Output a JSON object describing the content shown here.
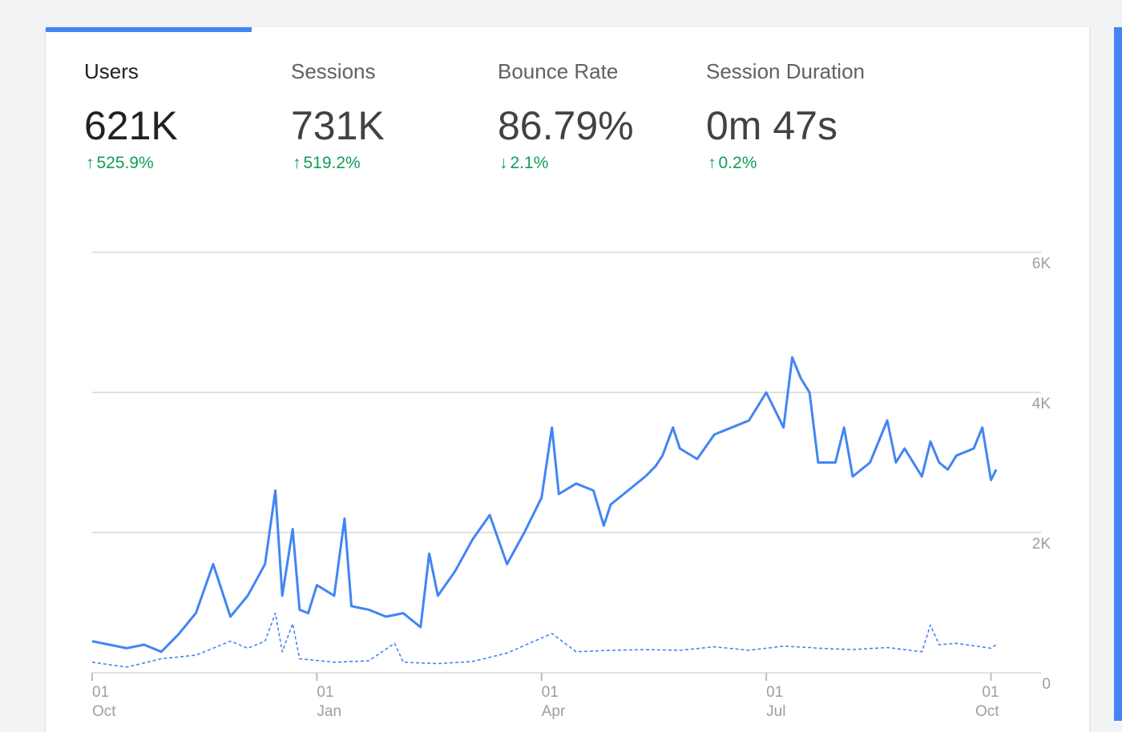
{
  "metrics": [
    {
      "label": "Users",
      "value": "621K",
      "direction": "up",
      "arrow": "↑",
      "change": "525.9%"
    },
    {
      "label": "Sessions",
      "value": "731K",
      "direction": "up",
      "arrow": "↑",
      "change": "519.2%"
    },
    {
      "label": "Bounce Rate",
      "value": "86.79%",
      "direction": "down",
      "arrow": "↓",
      "change": "2.1%"
    },
    {
      "label": "Session Duration",
      "value": "0m 47s",
      "direction": "up",
      "arrow": "↑",
      "change": "0.2%"
    }
  ],
  "colors": {
    "accent": "#4285f4",
    "positive_change": "#0f9d58",
    "grid": "#e0e0e0"
  },
  "chart_data": {
    "type": "line",
    "y_ticks": [
      "6K",
      "4K",
      "2K",
      "0"
    ],
    "ylim": [
      0,
      6000
    ],
    "x_ticks": [
      {
        "day": "01",
        "month": "Oct"
      },
      {
        "day": "01",
        "month": "Jan"
      },
      {
        "day": "01",
        "month": "Apr"
      },
      {
        "day": "01",
        "month": "Jul"
      },
      {
        "day": "01",
        "month": "Oct"
      }
    ],
    "grid": true,
    "x_range_weeks": [
      0,
      52.3
    ],
    "series": [
      {
        "style": "solid",
        "x": [
          0,
          1,
          2,
          3,
          4,
          5,
          6,
          7,
          8,
          9,
          10,
          10.6,
          11,
          11.6,
          12,
          12.5,
          13,
          14,
          14.6,
          15,
          16,
          17,
          18,
          18.5,
          19,
          19.5,
          20,
          21,
          22,
          23,
          24,
          25,
          26,
          26.6,
          27,
          28,
          29,
          29.6,
          30,
          31,
          32,
          32.6,
          33,
          33.6,
          34,
          35,
          36,
          37,
          38,
          39,
          40,
          40.5,
          41,
          41.5,
          42,
          43,
          43.5,
          44,
          45,
          46,
          46.5,
          47,
          48,
          48.5,
          49,
          49.5,
          50,
          51,
          51.5,
          52,
          52.3
        ],
        "y": [
          450,
          400,
          350,
          400,
          300,
          550,
          850,
          1550,
          800,
          1100,
          1550,
          2600,
          1100,
          2050,
          900,
          850,
          1250,
          1100,
          2200,
          950,
          900,
          800,
          850,
          750,
          650,
          1700,
          1100,
          1450,
          1900,
          2250,
          1550,
          2000,
          2500,
          3500,
          2550,
          2700,
          2600,
          2100,
          2400,
          2600,
          2800,
          2950,
          3100,
          3500,
          3200,
          3050,
          3400,
          3500,
          3600,
          4000,
          3500,
          4500,
          4200,
          4000,
          3000,
          3000,
          3500,
          2800,
          3000,
          3600,
          3000,
          3200,
          2800,
          3300,
          3000,
          2900,
          3100,
          3200,
          3500,
          2750,
          2900
        ]
      },
      {
        "style": "dashed",
        "x": [
          0,
          2,
          4,
          6,
          8,
          9,
          10,
          10.6,
          11,
          11.6,
          12,
          14,
          16,
          17.5,
          18,
          20,
          22,
          24,
          26.6,
          28,
          30,
          32,
          34,
          36,
          38,
          40,
          41.5,
          42,
          44,
          46,
          48,
          48.5,
          49,
          50,
          52,
          52.3
        ],
        "y": [
          150,
          80,
          200,
          250,
          450,
          350,
          450,
          850,
          300,
          700,
          200,
          150,
          170,
          420,
          150,
          130,
          160,
          280,
          560,
          300,
          320,
          330,
          320,
          370,
          320,
          380,
          360,
          350,
          330,
          360,
          300,
          680,
          400,
          420,
          350,
          400
        ]
      }
    ]
  }
}
